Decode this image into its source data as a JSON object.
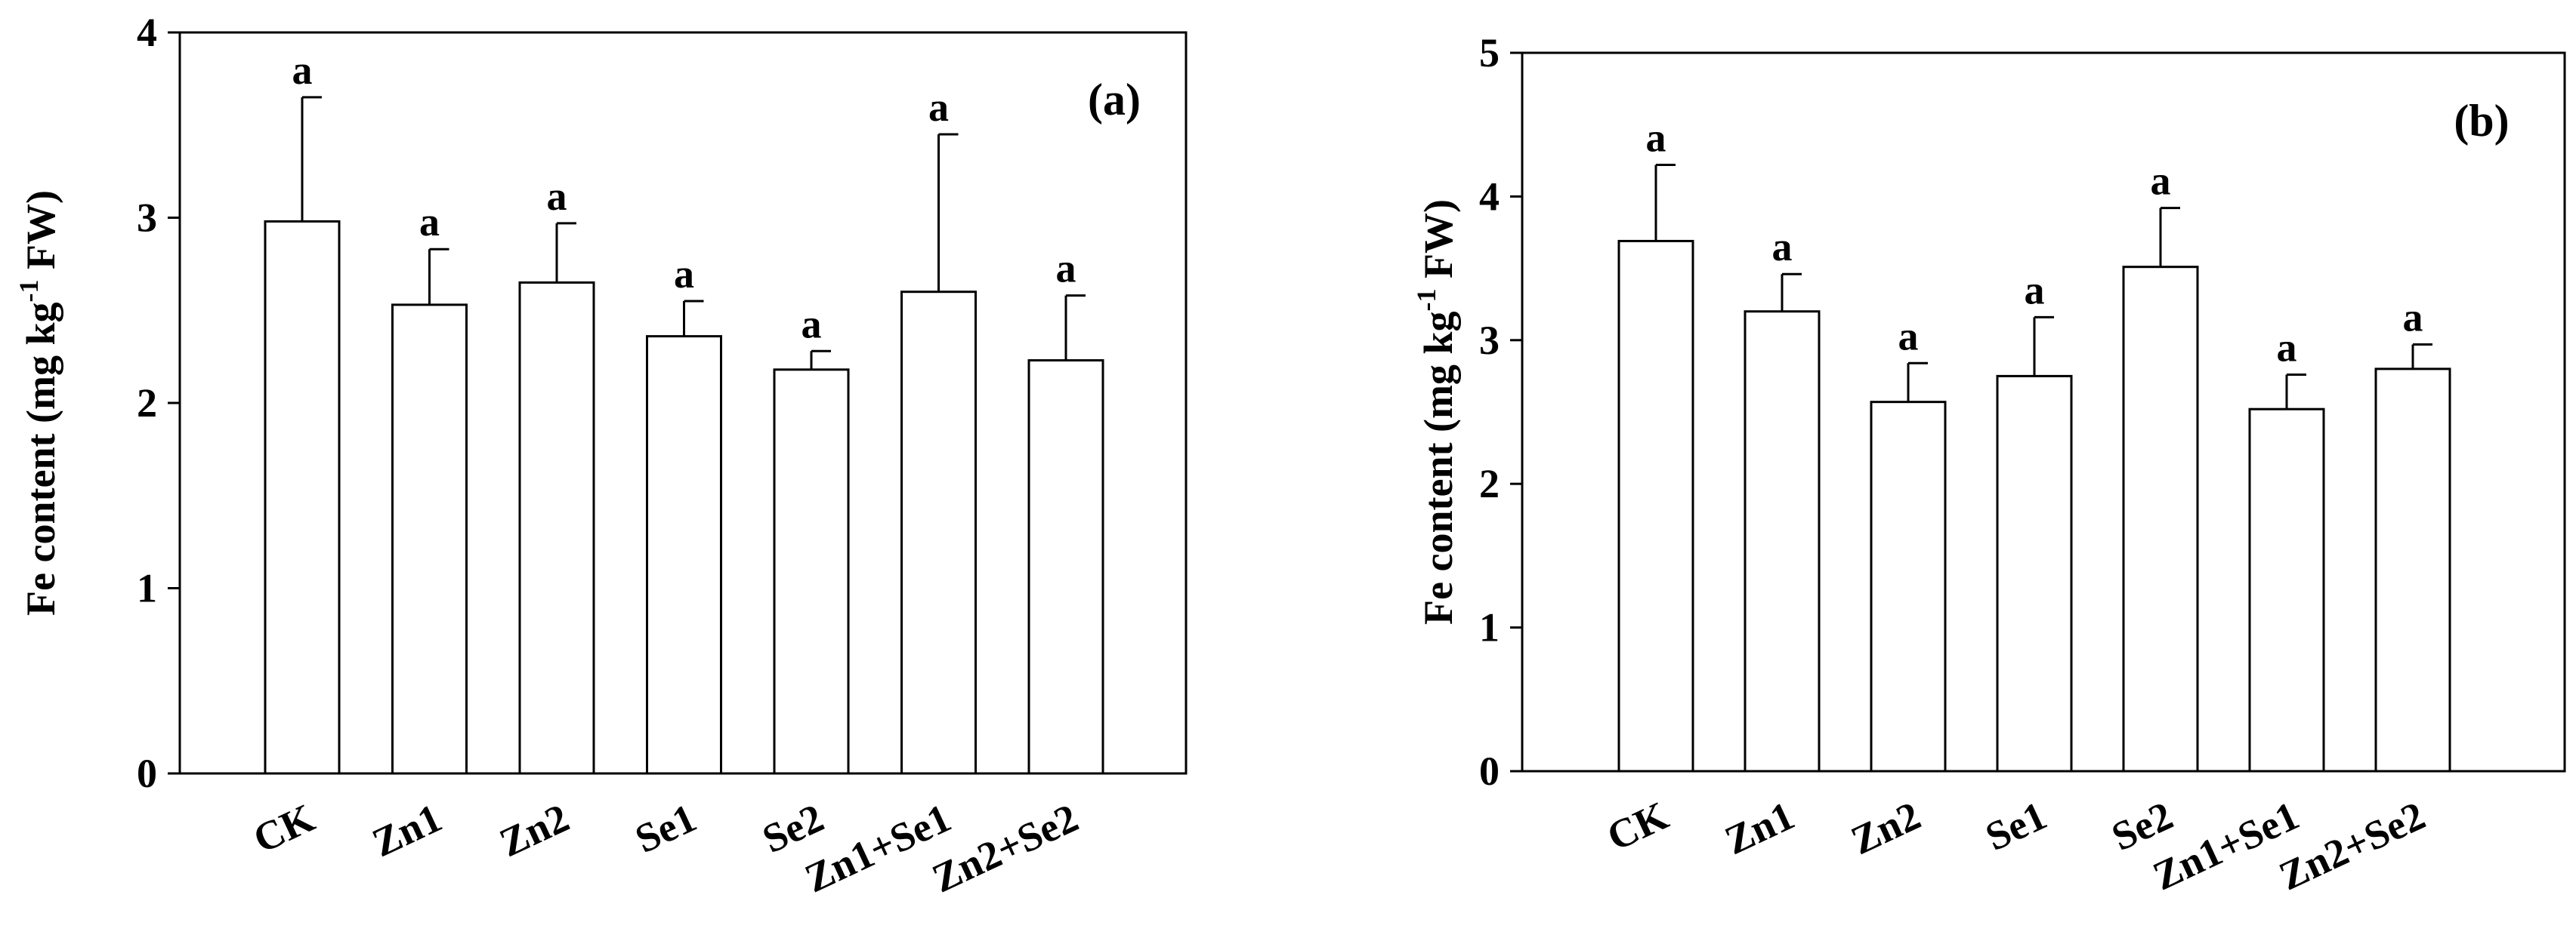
{
  "chart_data": [
    {
      "type": "bar",
      "panel_label": "(a)",
      "ylabel_main": "Fe content (mg kg",
      "ylabel_sup": "-1",
      "ylabel_tail": " FW)",
      "ylim": [
        0,
        4
      ],
      "yticks": [
        0,
        1,
        2,
        3,
        4
      ],
      "categories": [
        "CK",
        "Zn1",
        "Zn2",
        "Se1",
        "Se2",
        "Zn1+Se1",
        "Zn2+Se2"
      ],
      "values": [
        2.98,
        2.53,
        2.65,
        2.36,
        2.18,
        2.6,
        2.23
      ],
      "errors": [
        0.67,
        0.3,
        0.32,
        0.19,
        0.1,
        0.85,
        0.35
      ],
      "significance": [
        "a",
        "a",
        "a",
        "a",
        "a",
        "a",
        "a"
      ],
      "colors": {
        "bar_fill": "#ffffff",
        "stroke": "#000000"
      }
    },
    {
      "type": "bar",
      "panel_label": "(b)",
      "ylabel_main": "Fe content (mg kg",
      "ylabel_sup": "-1",
      "ylabel_tail": " FW)",
      "ylim": [
        0,
        5
      ],
      "yticks": [
        0,
        1,
        2,
        3,
        4,
        5
      ],
      "categories": [
        "CK",
        "Zn1",
        "Zn2",
        "Se1",
        "Se2",
        "Zn1+Se1",
        "Zn2+Se2"
      ],
      "values": [
        3.69,
        3.2,
        2.57,
        2.75,
        3.51,
        2.52,
        2.8
      ],
      "errors": [
        0.53,
        0.26,
        0.27,
        0.41,
        0.41,
        0.24,
        0.17
      ],
      "significance": [
        "a",
        "a",
        "a",
        "a",
        "a",
        "a",
        "a"
      ],
      "colors": {
        "bar_fill": "#ffffff",
        "stroke": "#000000"
      }
    }
  ]
}
